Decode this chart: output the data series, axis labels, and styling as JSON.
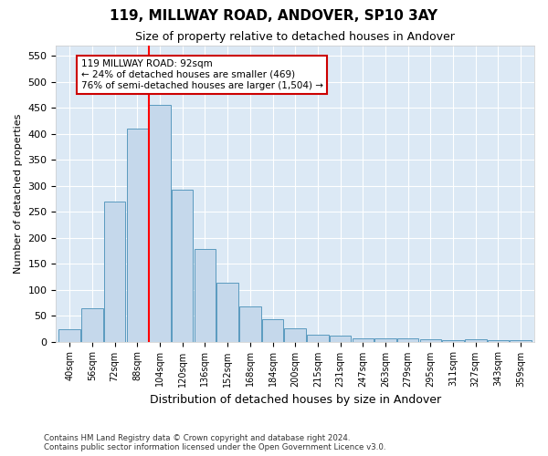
{
  "title": "119, MILLWAY ROAD, ANDOVER, SP10 3AY",
  "subtitle": "Size of property relative to detached houses in Andover",
  "xlabel": "Distribution of detached houses by size in Andover",
  "ylabel": "Number of detached properties",
  "footer_line1": "Contains HM Land Registry data © Crown copyright and database right 2024.",
  "footer_line2": "Contains public sector information licensed under the Open Government Licence v3.0.",
  "bar_categories": [
    "40sqm",
    "56sqm",
    "72sqm",
    "88sqm",
    "104sqm",
    "120sqm",
    "136sqm",
    "152sqm",
    "168sqm",
    "184sqm",
    "200sqm",
    "215sqm",
    "231sqm",
    "247sqm",
    "263sqm",
    "279sqm",
    "295sqm",
    "311sqm",
    "327sqm",
    "343sqm",
    "359sqm"
  ],
  "bar_values": [
    23,
    65,
    270,
    410,
    455,
    293,
    178,
    113,
    68,
    43,
    25,
    14,
    11,
    6,
    7,
    7,
    4,
    3,
    4,
    2,
    3
  ],
  "bar_color": "#c5d8eb",
  "bar_edge_color": "#5a9abf",
  "ylim": [
    0,
    570
  ],
  "yticks": [
    0,
    50,
    100,
    150,
    200,
    250,
    300,
    350,
    400,
    450,
    500,
    550
  ],
  "red_line_x": 3.5,
  "annotation_text": "119 MILLWAY ROAD: 92sqm\n← 24% of detached houses are smaller (469)\n76% of semi-detached houses are larger (1,504) →",
  "annotation_box_color": "#ffffff",
  "annotation_box_edge_color": "#cc0000",
  "background_color": "#dce9f5",
  "grid_color": "#ffffff",
  "fig_width": 6.0,
  "fig_height": 5.0,
  "dpi": 100
}
